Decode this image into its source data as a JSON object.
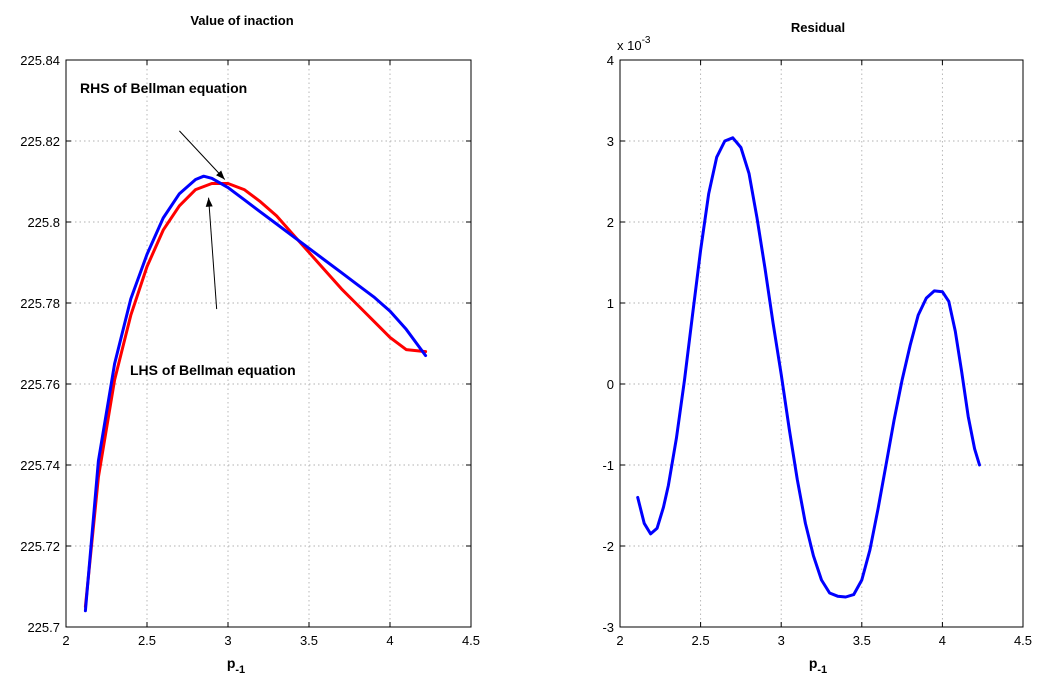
{
  "chart_data": [
    {
      "type": "line",
      "title": "Value of inaction",
      "xlabel_base": "p",
      "xlabel_sub": "-1",
      "xlim": [
        2,
        4.5
      ],
      "ylim": [
        225.7,
        225.84
      ],
      "xticks": [
        2,
        2.5,
        3,
        3.5,
        4,
        4.5
      ],
      "xtick_labels": [
        "2",
        "2.5",
        "3",
        "3.5",
        "4",
        "4.5"
      ],
      "yticks": [
        225.7,
        225.72,
        225.74,
        225.76,
        225.78,
        225.8,
        225.82,
        225.84
      ],
      "ytick_labels": [
        "225.7",
        "225.72",
        "225.74",
        "225.76",
        "225.78",
        "225.8",
        "225.82",
        "225.84"
      ],
      "grid": true,
      "series": [
        {
          "color": "#ff0000",
          "x": [
            2.12,
            2.2,
            2.3,
            2.4,
            2.5,
            2.6,
            2.7,
            2.8,
            2.9,
            3.0,
            3.1,
            3.2,
            3.3,
            3.4,
            3.5,
            3.6,
            3.7,
            3.8,
            3.9,
            4.0,
            4.1,
            4.22
          ],
          "y": [
            225.705,
            225.737,
            225.761,
            225.777,
            225.789,
            225.798,
            225.804,
            225.808,
            225.8095,
            225.8095,
            225.808,
            225.805,
            225.8015,
            225.797,
            225.7925,
            225.788,
            225.7835,
            225.7795,
            225.7755,
            225.7715,
            225.7685,
            225.768
          ]
        },
        {
          "color": "#0000ff",
          "x": [
            2.12,
            2.2,
            2.3,
            2.4,
            2.5,
            2.6,
            2.7,
            2.8,
            2.85,
            2.9,
            3.0,
            3.1,
            3.2,
            3.3,
            3.4,
            3.5,
            3.6,
            3.7,
            3.8,
            3.9,
            4.0,
            4.1,
            4.22
          ],
          "y": [
            225.704,
            225.741,
            225.765,
            225.781,
            225.792,
            225.801,
            225.807,
            225.8105,
            225.8113,
            225.8108,
            225.8085,
            225.8055,
            225.8025,
            225.7995,
            225.7965,
            225.7935,
            225.7905,
            225.7875,
            225.7845,
            225.7815,
            225.778,
            225.7735,
            225.767
          ]
        }
      ],
      "annotations": [
        {
          "text": "RHS of Bellman equation",
          "arrow_tail": [
            2.7,
            225.8225
          ],
          "arrow_head": [
            2.98,
            225.8105
          ]
        },
        {
          "text": "LHS of Bellman equation",
          "arrow_tail": [
            2.93,
            225.7785
          ],
          "arrow_head": [
            2.88,
            225.806
          ]
        }
      ]
    },
    {
      "type": "line",
      "title": "Residual",
      "exponent_base": "x 10",
      "exponent_power": "-3",
      "xlabel_base": "p",
      "xlabel_sub": "-1",
      "xlim": [
        2,
        4.5
      ],
      "ylim": [
        -3,
        4
      ],
      "xticks": [
        2,
        2.5,
        3,
        3.5,
        4,
        4.5
      ],
      "xtick_labels": [
        "2",
        "2.5",
        "3",
        "3.5",
        "4",
        "4.5"
      ],
      "yticks": [
        -3,
        -2,
        -1,
        0,
        1,
        2,
        3,
        4
      ],
      "ytick_labels": [
        "-3",
        "-2",
        "-1",
        "0",
        "1",
        "2",
        "3",
        "4"
      ],
      "grid": true,
      "series": [
        {
          "color": "#0000ff",
          "x": [
            2.11,
            2.15,
            2.19,
            2.23,
            2.27,
            2.3,
            2.35,
            2.4,
            2.45,
            2.5,
            2.55,
            2.6,
            2.65,
            2.7,
            2.75,
            2.8,
            2.85,
            2.9,
            2.95,
            3.0,
            3.05,
            3.1,
            3.15,
            3.2,
            3.25,
            3.3,
            3.35,
            3.4,
            3.45,
            3.5,
            3.55,
            3.6,
            3.65,
            3.7,
            3.75,
            3.8,
            3.85,
            3.9,
            3.95,
            4.0,
            4.04,
            4.08,
            4.12,
            4.16,
            4.2,
            4.23
          ],
          "y": [
            -1.4,
            -1.72,
            -1.85,
            -1.78,
            -1.52,
            -1.25,
            -0.67,
            0.05,
            0.85,
            1.65,
            2.35,
            2.8,
            3.0,
            3.04,
            2.92,
            2.6,
            2.05,
            1.42,
            0.75,
            0.12,
            -0.56,
            -1.18,
            -1.72,
            -2.12,
            -2.42,
            -2.58,
            -2.62,
            -2.63,
            -2.6,
            -2.42,
            -2.05,
            -1.55,
            -1.0,
            -0.45,
            0.05,
            0.48,
            0.85,
            1.06,
            1.15,
            1.14,
            1.02,
            0.65,
            0.15,
            -0.4,
            -0.8,
            -1.0
          ]
        }
      ]
    }
  ]
}
